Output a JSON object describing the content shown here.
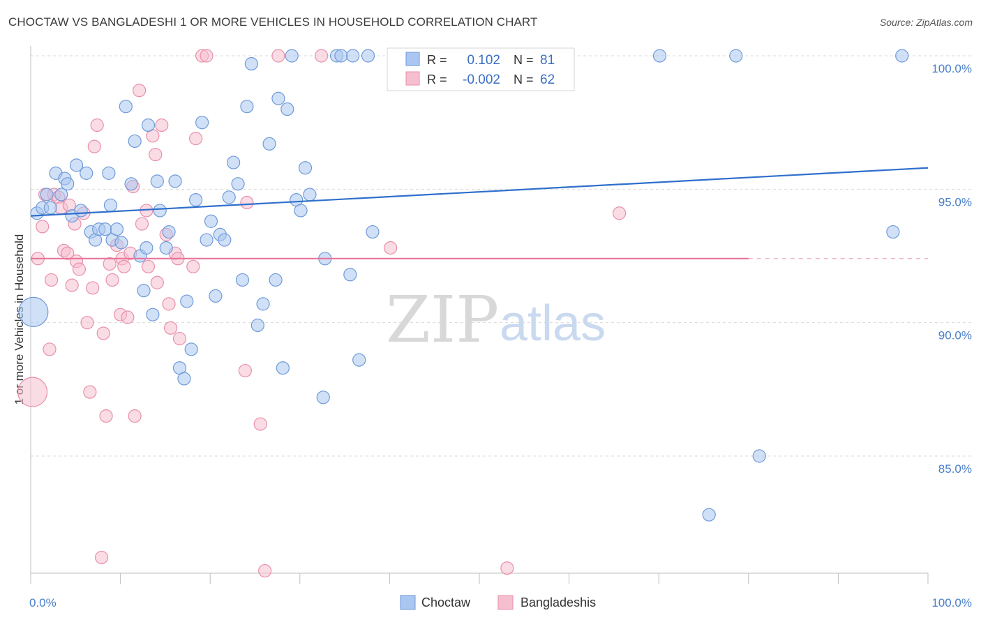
{
  "header": {
    "title": "CHOCTAW VS BANGLADESHI 1 OR MORE VEHICLES IN HOUSEHOLD CORRELATION CHART",
    "source": "Source: ZipAtlas.com"
  },
  "watermark": {
    "zip": "ZIP",
    "atlas": "atlas"
  },
  "colors": {
    "choctaw_fill": "#a9c7f0",
    "choctaw_stroke": "#6f9ad8",
    "choctaw_line": "#2f6fcc",
    "bangladeshi_fill": "#f6bfd0",
    "bangladeshi_stroke": "#e88fab",
    "bangladeshi_line": "#e8739a",
    "grid": "#d9d9d9",
    "tick_text": "#4a7fc9"
  },
  "legend_box": {
    "rows": [
      {
        "r_label": "R =",
        "r_value": "0.102",
        "n_label": "N =",
        "n_value": "81"
      },
      {
        "r_label": "R =",
        "r_value": "-0.002",
        "n_label": "N =",
        "n_value": "62"
      }
    ]
  },
  "chart_data": {
    "type": "scatter",
    "title": "CHOCTAW VS BANGLADESHI 1 OR MORE VEHICLES IN HOUSEHOLD CORRELATION CHART",
    "xlabel": "",
    "ylabel": "1 or more Vehicles in Household",
    "xlim": [
      0,
      100
    ],
    "ylim": [
      80.0,
      101.0
    ],
    "x_tick_labels": [
      {
        "value": 0,
        "label": "0.0%"
      },
      {
        "value": 100,
        "label": "100.0%"
      }
    ],
    "y_tick_labels": [
      {
        "value": 100,
        "label": "100.0%"
      },
      {
        "value": 95,
        "label": "95.0%"
      },
      {
        "value": 90,
        "label": "90.0%"
      },
      {
        "value": 85,
        "label": "85.0%"
      }
    ],
    "legend": [
      "Choctaw",
      "Bangladeshis"
    ],
    "series": [
      {
        "name": "Choctaw",
        "R": 0.102,
        "N": 81,
        "trend": {
          "x": [
            0,
            100
          ],
          "y": [
            94.0,
            95.8
          ],
          "dashed_from": null
        },
        "points": [
          [
            0.3,
            90.4
          ],
          [
            0.7,
            94.1
          ],
          [
            1.3,
            94.3
          ],
          [
            1.8,
            94.8
          ],
          [
            2.2,
            94.3
          ],
          [
            2.8,
            95.6
          ],
          [
            3.4,
            94.8
          ],
          [
            3.8,
            95.4
          ],
          [
            4.1,
            95.2
          ],
          [
            4.6,
            94.0
          ],
          [
            5.1,
            95.9
          ],
          [
            5.6,
            94.2
          ],
          [
            6.2,
            95.6
          ],
          [
            6.7,
            93.4
          ],
          [
            7.2,
            93.1
          ],
          [
            7.6,
            93.5
          ],
          [
            8.3,
            93.5
          ],
          [
            8.7,
            95.6
          ],
          [
            8.9,
            94.4
          ],
          [
            9.1,
            93.1
          ],
          [
            9.6,
            93.5
          ],
          [
            10.1,
            93.0
          ],
          [
            10.6,
            98.1
          ],
          [
            11.2,
            95.2
          ],
          [
            11.6,
            96.8
          ],
          [
            12.2,
            92.5
          ],
          [
            12.6,
            91.2
          ],
          [
            12.9,
            92.8
          ],
          [
            13.1,
            97.4
          ],
          [
            13.6,
            90.3
          ],
          [
            14.1,
            95.3
          ],
          [
            14.4,
            94.2
          ],
          [
            15.1,
            92.8
          ],
          [
            15.4,
            93.4
          ],
          [
            16.1,
            95.3
          ],
          [
            16.6,
            88.3
          ],
          [
            17.1,
            87.9
          ],
          [
            17.4,
            90.8
          ],
          [
            17.9,
            89.0
          ],
          [
            18.4,
            94.6
          ],
          [
            19.1,
            97.5
          ],
          [
            19.6,
            93.1
          ],
          [
            20.1,
            93.8
          ],
          [
            20.6,
            91.0
          ],
          [
            21.1,
            93.3
          ],
          [
            21.6,
            93.1
          ],
          [
            22.1,
            94.7
          ],
          [
            22.6,
            96.0
          ],
          [
            23.1,
            95.2
          ],
          [
            23.6,
            91.6
          ],
          [
            24.1,
            98.1
          ],
          [
            24.6,
            99.7
          ],
          [
            25.3,
            89.9
          ],
          [
            25.9,
            90.7
          ],
          [
            26.6,
            96.7
          ],
          [
            27.3,
            91.6
          ],
          [
            27.6,
            98.4
          ],
          [
            28.1,
            88.3
          ],
          [
            28.6,
            98.0
          ],
          [
            29.1,
            100.0
          ],
          [
            29.6,
            94.6
          ],
          [
            30.1,
            94.2
          ],
          [
            30.6,
            95.8
          ],
          [
            31.1,
            94.8
          ],
          [
            32.6,
            87.2
          ],
          [
            32.8,
            92.4
          ],
          [
            34.1,
            100.0
          ],
          [
            34.6,
            100.0
          ],
          [
            35.6,
            91.8
          ],
          [
            35.9,
            100.0
          ],
          [
            36.6,
            88.6
          ],
          [
            37.6,
            100.0
          ],
          [
            38.1,
            93.4
          ],
          [
            46.1,
            100.0
          ],
          [
            46.7,
            100.0
          ],
          [
            70.1,
            100.0
          ],
          [
            75.6,
            82.8
          ],
          [
            78.6,
            100.0
          ],
          [
            81.2,
            85.0
          ],
          [
            96.1,
            93.4
          ],
          [
            97.1,
            100.0
          ]
        ]
      },
      {
        "name": "Bangladeshis",
        "R": -0.002,
        "N": 62,
        "trend": {
          "x": [
            0,
            100
          ],
          "y": [
            92.4,
            92.4
          ],
          "dashed_from": 80
        },
        "points": [
          [
            0.2,
            87.4
          ],
          [
            0.8,
            92.4
          ],
          [
            1.3,
            93.6
          ],
          [
            1.6,
            94.8
          ],
          [
            2.1,
            89.0
          ],
          [
            2.3,
            91.6
          ],
          [
            2.6,
            94.8
          ],
          [
            3.1,
            94.7
          ],
          [
            3.4,
            94.3
          ],
          [
            3.7,
            92.7
          ],
          [
            4.1,
            92.6
          ],
          [
            4.3,
            94.4
          ],
          [
            4.6,
            91.4
          ],
          [
            4.9,
            93.7
          ],
          [
            5.1,
            92.3
          ],
          [
            5.4,
            92.0
          ],
          [
            5.9,
            94.1
          ],
          [
            6.3,
            90.0
          ],
          [
            6.6,
            87.4
          ],
          [
            6.9,
            91.3
          ],
          [
            7.1,
            96.6
          ],
          [
            7.4,
            97.4
          ],
          [
            7.9,
            81.2
          ],
          [
            8.1,
            89.6
          ],
          [
            8.4,
            86.5
          ],
          [
            8.8,
            92.2
          ],
          [
            9.1,
            91.6
          ],
          [
            9.6,
            92.9
          ],
          [
            10.0,
            90.3
          ],
          [
            10.2,
            92.4
          ],
          [
            10.4,
            92.1
          ],
          [
            10.8,
            90.2
          ],
          [
            11.1,
            92.6
          ],
          [
            11.4,
            95.1
          ],
          [
            11.6,
            86.5
          ],
          [
            12.1,
            98.7
          ],
          [
            12.4,
            93.7
          ],
          [
            12.9,
            94.2
          ],
          [
            13.1,
            92.1
          ],
          [
            13.6,
            97.0
          ],
          [
            13.9,
            96.3
          ],
          [
            14.1,
            91.5
          ],
          [
            14.6,
            97.4
          ],
          [
            15.1,
            93.3
          ],
          [
            15.4,
            90.7
          ],
          [
            15.6,
            89.8
          ],
          [
            16.1,
            92.6
          ],
          [
            16.4,
            92.4
          ],
          [
            16.6,
            89.4
          ],
          [
            18.1,
            92.1
          ],
          [
            18.4,
            96.9
          ],
          [
            19.1,
            100.0
          ],
          [
            19.6,
            100.0
          ],
          [
            23.9,
            88.2
          ],
          [
            24.1,
            94.5
          ],
          [
            25.6,
            86.2
          ],
          [
            26.1,
            80.7
          ],
          [
            27.6,
            100.0
          ],
          [
            32.4,
            100.0
          ],
          [
            40.1,
            92.8
          ],
          [
            53.1,
            80.8
          ],
          [
            65.6,
            94.1
          ]
        ]
      }
    ]
  }
}
